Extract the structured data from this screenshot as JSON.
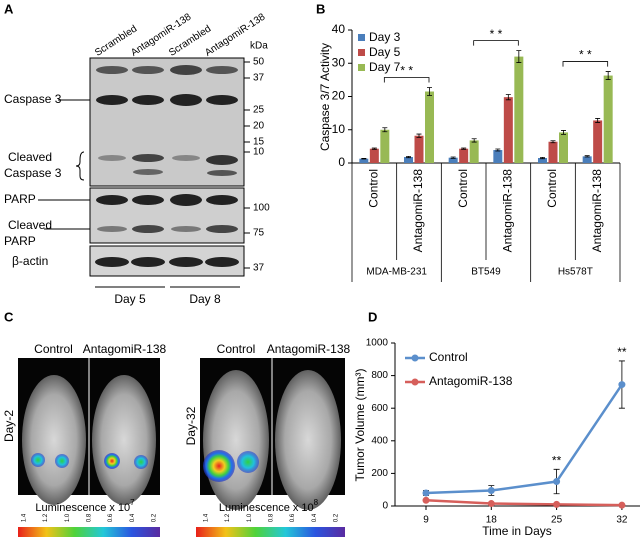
{
  "blot": {
    "label": "A",
    "lanes": [
      "Scrambled",
      "AntagomiR-138",
      "Scrambled",
      "AntagomiR-138"
    ],
    "unit": "kDa",
    "proteins": [
      {
        "lines": [
          "Caspase 3"
        ]
      },
      {
        "lines": [
          "Cleaved",
          "Caspase 3"
        ]
      },
      {
        "lines": [
          "PARP"
        ]
      },
      {
        "lines": [
          "Cleaved",
          "PARP"
        ]
      },
      {
        "lines": [
          "β-actin"
        ]
      }
    ],
    "markers": [
      "50",
      "37",
      "25",
      "20",
      "15",
      "10",
      "100",
      "75",
      "37"
    ],
    "days": [
      "Day 5",
      "Day 8"
    ]
  },
  "imaging": {
    "label": "C",
    "panels": [
      {
        "day": "Day-2",
        "columns": [
          "Control",
          "AntagomiR-138"
        ],
        "scale_text": "Luminescence x 10",
        "scale_exponent": "7"
      },
      {
        "day": "Day-32",
        "columns": [
          "Control",
          "AntagomiR-138"
        ],
        "scale_text": "Luminescence x 10",
        "scale_exponent": "8"
      }
    ],
    "colorbar_ticks": [
      "1.4",
      "1.2",
      "1.0",
      "0.8",
      "0.6",
      "0.4",
      "0.2"
    ]
  },
  "chart_data": [
    {
      "type": "bar",
      "label": "B",
      "ylabel": "Caspase 3/7 Activity",
      "categories": [
        "Control",
        "AntagomiR-138",
        "Control",
        "AntagomiR-138",
        "Control",
        "AntagomiR-138"
      ],
      "groups": [
        "MDA-MB-231",
        "BT549",
        "Hs578T"
      ],
      "series": [
        {
          "name": "Day 3",
          "color": "#4a7ebb",
          "values": [
            1.3,
            1.8,
            1.6,
            3.9,
            1.5,
            2.0
          ],
          "errors": [
            0.1,
            0.2,
            0.2,
            0.3,
            0.2,
            0.2
          ]
        },
        {
          "name": "Day 5",
          "color": "#be4b48",
          "values": [
            4.3,
            8.2,
            4.3,
            19.8,
            6.4,
            12.8
          ],
          "errors": [
            0.2,
            0.5,
            0.2,
            0.8,
            0.3,
            0.6
          ]
        },
        {
          "name": "Day 7",
          "color": "#98b954",
          "values": [
            10,
            21.5,
            6.8,
            32,
            9.2,
            26.3
          ],
          "errors": [
            0.6,
            1.2,
            0.5,
            1.8,
            0.6,
            1.2
          ]
        }
      ],
      "annotations": [
        "* *",
        "* *",
        "* *"
      ],
      "ylim": [
        0,
        40
      ],
      "yticks": [
        0,
        10,
        20,
        30,
        40
      ],
      "legend": "top-left"
    },
    {
      "type": "line",
      "label": "D",
      "xlabel": "Time in Days",
      "ylabel": "Tumor Volume (mm³)",
      "categories": [
        "9",
        "18",
        "25",
        "32"
      ],
      "series": [
        {
          "name": "Control",
          "color": "#5b8fcc",
          "values": [
            80,
            95,
            150,
            745
          ],
          "errors": [
            15,
            30,
            75,
            145
          ],
          "annotations": [
            null,
            null,
            "**",
            "**"
          ]
        },
        {
          "name": "AntagomiR-138",
          "color": "#d65f5b",
          "values": [
            35,
            15,
            10,
            5
          ],
          "errors": [
            5,
            5,
            5,
            3
          ]
        }
      ],
      "ylim": [
        0,
        1000
      ],
      "yticks": [
        0,
        200,
        400,
        600,
        800,
        1000
      ],
      "legend": "top-left"
    }
  ]
}
